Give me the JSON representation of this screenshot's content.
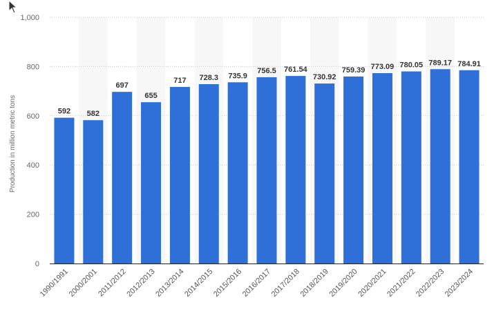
{
  "chart_data": {
    "type": "bar",
    "title": "",
    "xlabel": "",
    "ylabel": "Production in million metric tons",
    "ylim": [
      0,
      1000
    ],
    "yticks": [
      0,
      200,
      400,
      600,
      800,
      1000
    ],
    "ytick_labels": [
      "0",
      "200",
      "400",
      "600",
      "800",
      "1,000"
    ],
    "grid": true,
    "bar_color": "#2f6fd8",
    "categories": [
      "1990/1991",
      "2000/2001",
      "2011/2012",
      "2012/2013",
      "2013/2014",
      "2014/2015",
      "2015/2016",
      "2016/2017",
      "2017/2018",
      "2018/2019",
      "2019/2020",
      "2020/2021",
      "2021/2022",
      "2022/2023",
      "2023/2024"
    ],
    "values": [
      592,
      582,
      697,
      655,
      717,
      728.3,
      735.9,
      756.5,
      761.54,
      730.92,
      759.39,
      773.09,
      780.05,
      789.17,
      784.91
    ],
    "value_labels": [
      "592",
      "582",
      "697",
      "655",
      "717",
      "728.3",
      "735.9",
      "756.5",
      "761.54",
      "730.92",
      "759.39",
      "773.09",
      "780.05",
      "789.17",
      "784.91"
    ]
  }
}
